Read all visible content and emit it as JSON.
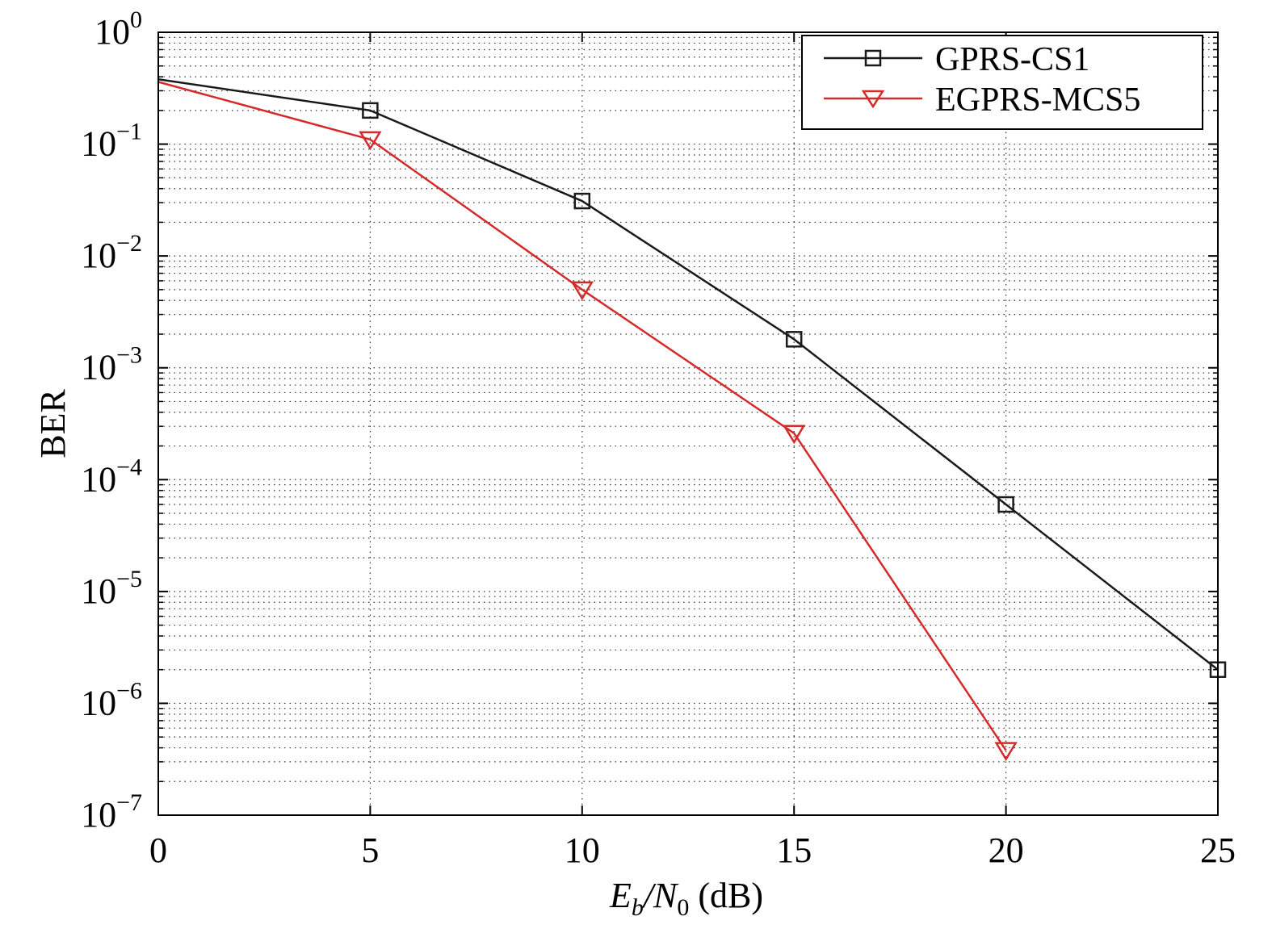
{
  "chart_data": {
    "type": "line",
    "title": "",
    "xlabel": {
      "main": "E",
      "sub1": "b",
      "mid": "/N",
      "sub2": "0",
      "tail": " (dB)"
    },
    "ylabel": "BER",
    "xlim": [
      0,
      25
    ],
    "ylim": [
      1e-07,
      1
    ],
    "yscale": "log",
    "grid": true,
    "legend_position": "top-right",
    "x_ticks": [
      "0",
      "5",
      "10",
      "15",
      "20",
      "25"
    ],
    "y_ticks": [
      {
        "base": "10",
        "exp": "0"
      },
      {
        "base": "10",
        "exp": "−1"
      },
      {
        "base": "10",
        "exp": "−2"
      },
      {
        "base": "10",
        "exp": "−3"
      },
      {
        "base": "10",
        "exp": "−4"
      },
      {
        "base": "10",
        "exp": "−5"
      },
      {
        "base": "10",
        "exp": "−6"
      },
      {
        "base": "10",
        "exp": "−7"
      }
    ],
    "series": [
      {
        "name": "GPRS-CS1",
        "color": "#1a1a1a",
        "marker": "square",
        "line_points": [
          {
            "x": 0,
            "y": 0.38
          },
          {
            "x": 5,
            "y": 0.2
          },
          {
            "x": 10,
            "y": 0.031
          },
          {
            "x": 15,
            "y": 0.0018
          },
          {
            "x": 20,
            "y": 6e-05
          },
          {
            "x": 25,
            "y": 2e-06
          }
        ],
        "marker_points": [
          {
            "x": 5,
            "y": 0.2
          },
          {
            "x": 10,
            "y": 0.031
          },
          {
            "x": 15,
            "y": 0.0018
          },
          {
            "x": 20,
            "y": 6e-05
          },
          {
            "x": 25,
            "y": 2e-06
          }
        ]
      },
      {
        "name": "EGPRS-MCS5",
        "color": "#d42a2a",
        "marker": "triangle-down",
        "line_points": [
          {
            "x": 0,
            "y": 0.36
          },
          {
            "x": 5,
            "y": 0.11
          },
          {
            "x": 10,
            "y": 0.005
          },
          {
            "x": 15,
            "y": 0.00026
          },
          {
            "x": 20,
            "y": 3.8e-07
          }
        ],
        "marker_points": [
          {
            "x": 5,
            "y": 0.11
          },
          {
            "x": 10,
            "y": 0.005
          },
          {
            "x": 15,
            "y": 0.00026
          },
          {
            "x": 20,
            "y": 3.8e-07
          }
        ]
      }
    ]
  }
}
